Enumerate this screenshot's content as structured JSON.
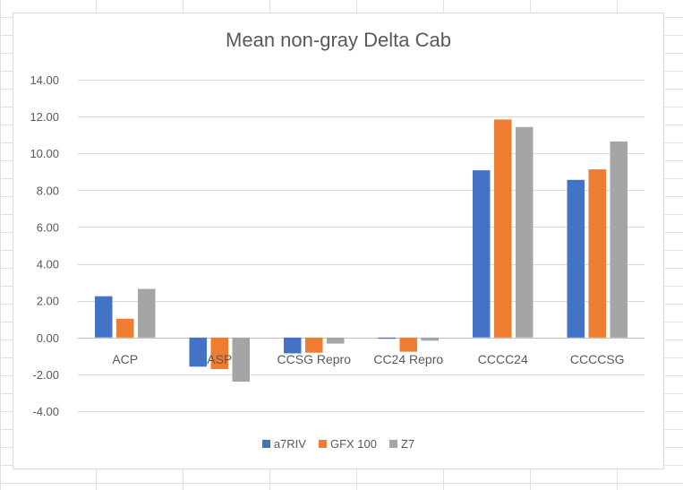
{
  "chart_data": {
    "type": "bar",
    "title": "Mean non-gray Delta Cab",
    "categories": [
      "ACP",
      "ASP",
      "CCSG Repro",
      "CC24 Repro",
      "CCCC24",
      "CCCCSG"
    ],
    "series": [
      {
        "name": "a7RIV",
        "color": "#4472c4",
        "values": [
          2.24,
          -1.58,
          -0.86,
          -0.07,
          9.08,
          8.56
        ]
      },
      {
        "name": "GFX 100",
        "color": "#ed7d31",
        "values": [
          1.02,
          -1.71,
          -0.82,
          -0.77,
          11.84,
          9.13
        ]
      },
      {
        "name": "Z7",
        "color": "#a5a5a5",
        "values": [
          2.64,
          -2.4,
          -0.33,
          -0.17,
          11.43,
          10.65
        ]
      }
    ],
    "yticks": [
      "14.00",
      "12.00",
      "10.00",
      "8.00",
      "6.00",
      "4.00",
      "2.00",
      "0.00",
      "-2.00",
      "-4.00"
    ],
    "ylim": [
      -4,
      14
    ],
    "xlabel": "",
    "ylabel": "",
    "grid": true,
    "legend_position": "bottom"
  }
}
